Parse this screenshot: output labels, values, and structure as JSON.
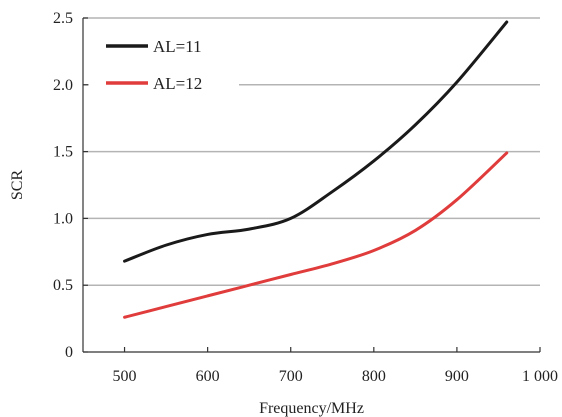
{
  "chart_data": {
    "type": "line",
    "title": "",
    "xlabel": "Frequency/MHz",
    "ylabel": "SCR",
    "xlim": [
      450,
      1000
    ],
    "ylim": [
      0,
      2.5
    ],
    "x_ticks": [
      500,
      600,
      700,
      800,
      900,
      1000
    ],
    "x_tick_labels": [
      "500",
      "600",
      "700",
      "800",
      "900",
      "1 000"
    ],
    "y_ticks": [
      0,
      0.5,
      1.0,
      1.5,
      2.0,
      2.5
    ],
    "y_tick_labels": [
      "0",
      "0.5",
      "1.0",
      "1.5",
      "2.0",
      "2.5"
    ],
    "grid": "horizontal",
    "legend_position": "top-left",
    "series": [
      {
        "name": "AL=11",
        "color": "#1a1a1a",
        "x": [
          500,
          550,
          600,
          650,
          700,
          750,
          800,
          850,
          900,
          960
        ],
        "y": [
          0.68,
          0.8,
          0.88,
          0.92,
          1.0,
          1.2,
          1.43,
          1.7,
          2.02,
          2.47
        ]
      },
      {
        "name": "AL=12",
        "color": "#e03c3c",
        "x": [
          500,
          550,
          600,
          650,
          700,
          750,
          800,
          850,
          900,
          960
        ],
        "y": [
          0.26,
          0.34,
          0.42,
          0.5,
          0.58,
          0.66,
          0.76,
          0.91,
          1.14,
          1.49
        ]
      }
    ]
  }
}
